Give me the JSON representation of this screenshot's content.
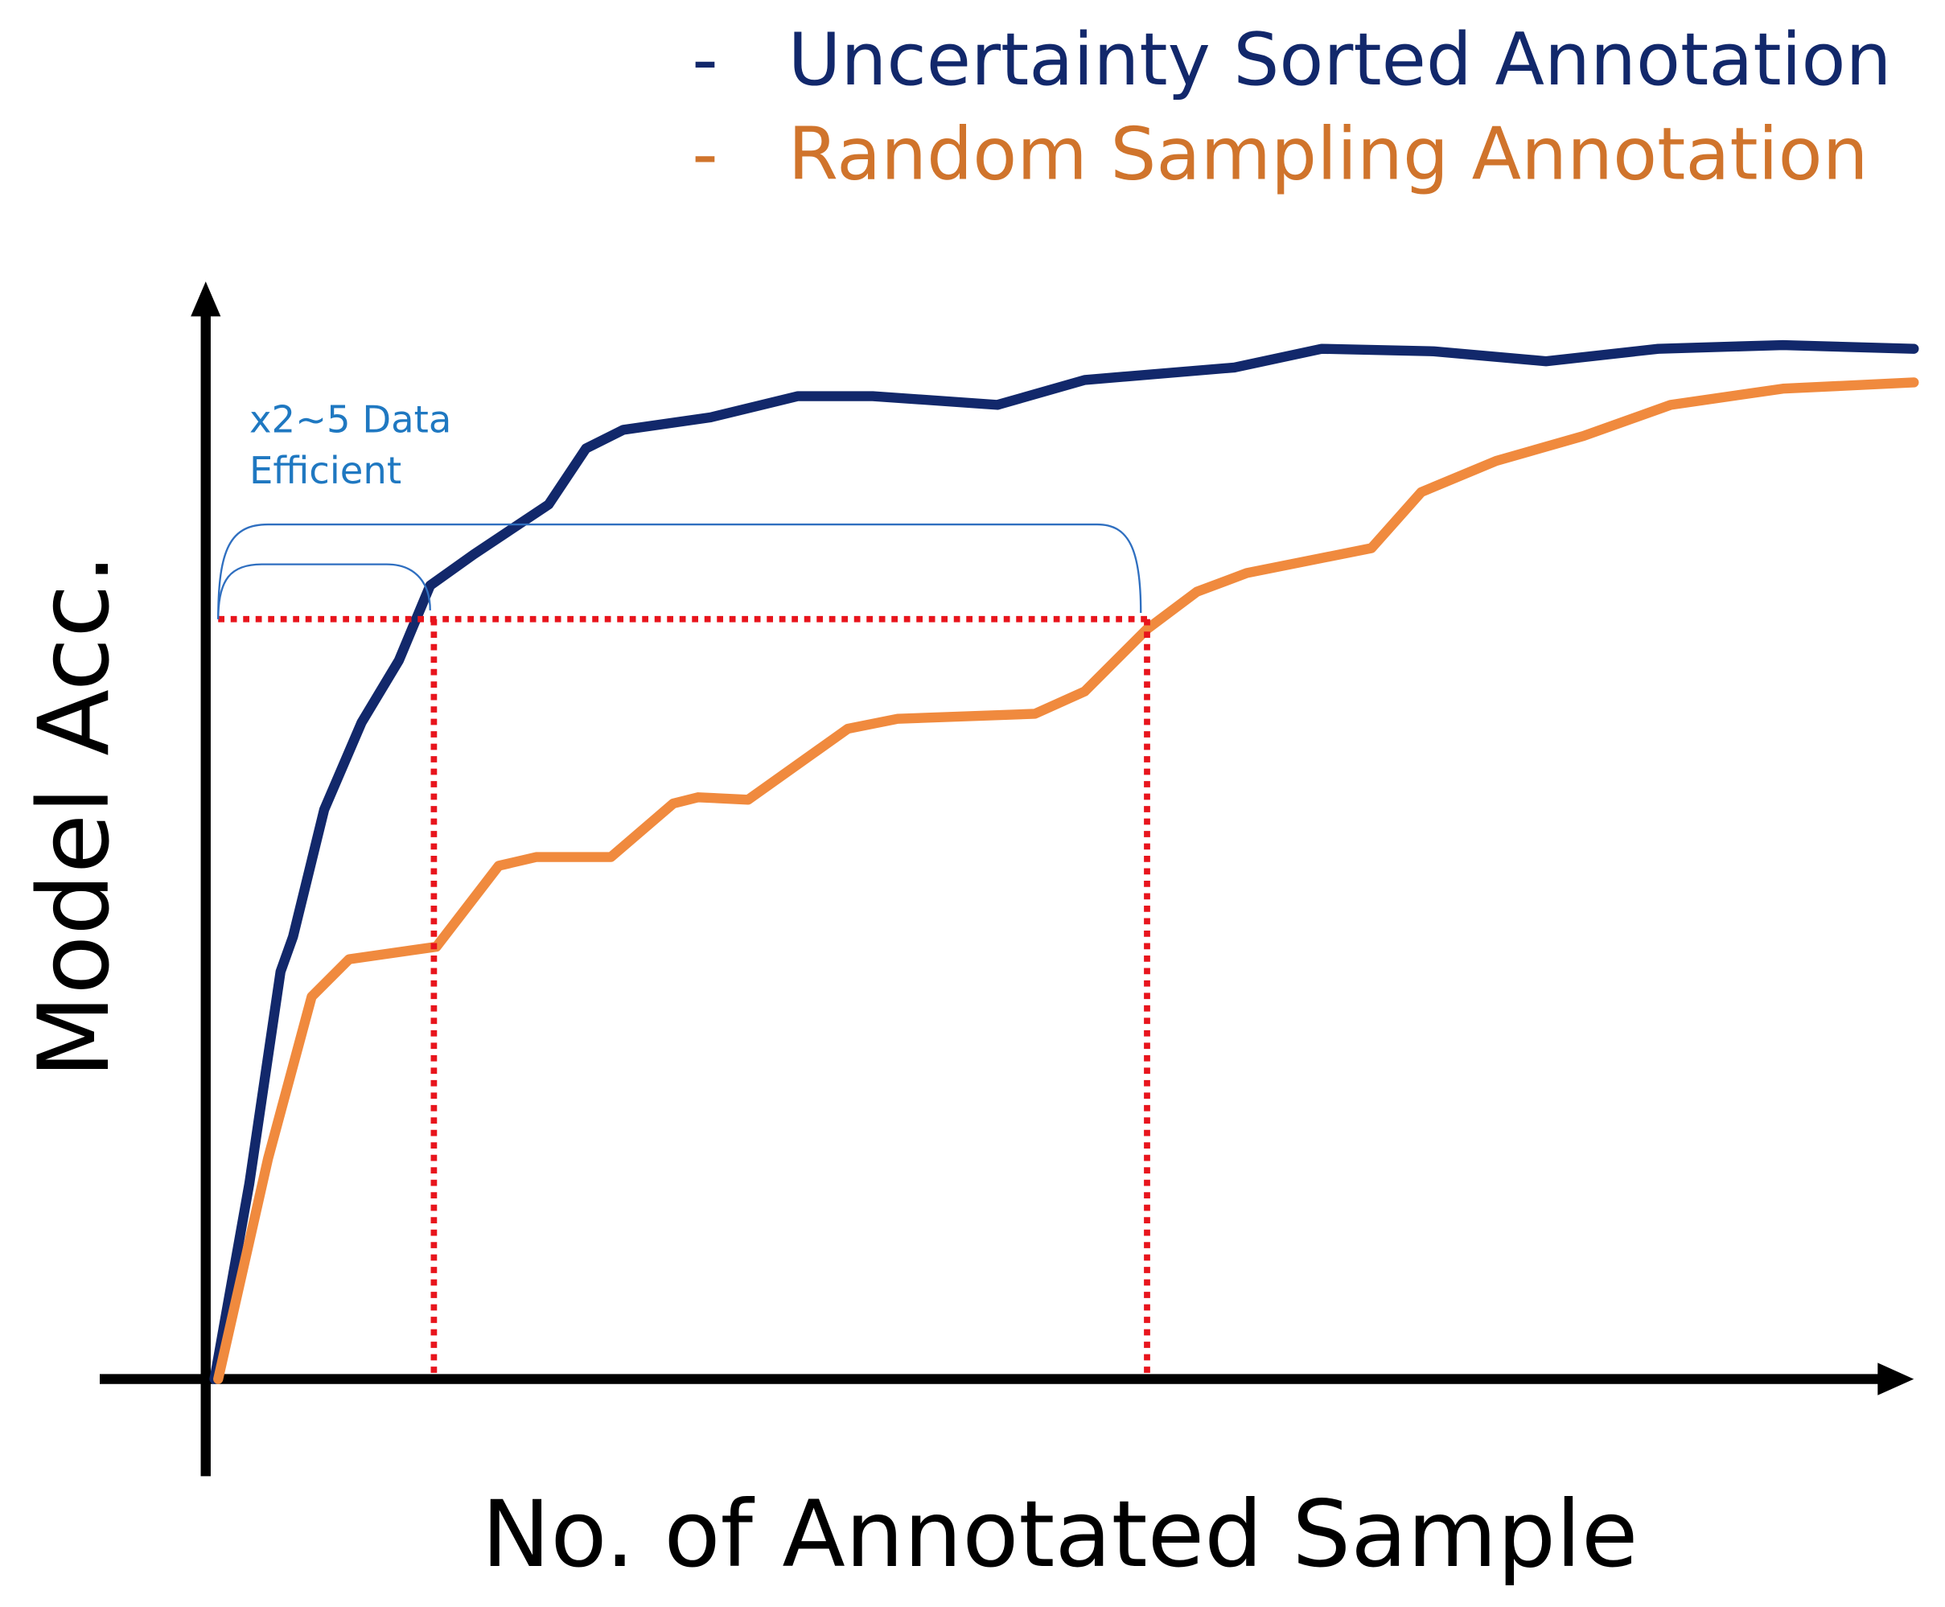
{
  "legend": [
    {
      "marker": "-",
      "label": "Uncertainty Sorted Annotation"
    },
    {
      "marker": "-",
      "label": "Random Sampling Annotation"
    }
  ],
  "annotation": {
    "lines": [
      "x2~5 Data",
      "Efficient"
    ]
  },
  "axes": {
    "y_label": "Model Acc.",
    "x_label": "No. of Annotated Sample"
  }
}
